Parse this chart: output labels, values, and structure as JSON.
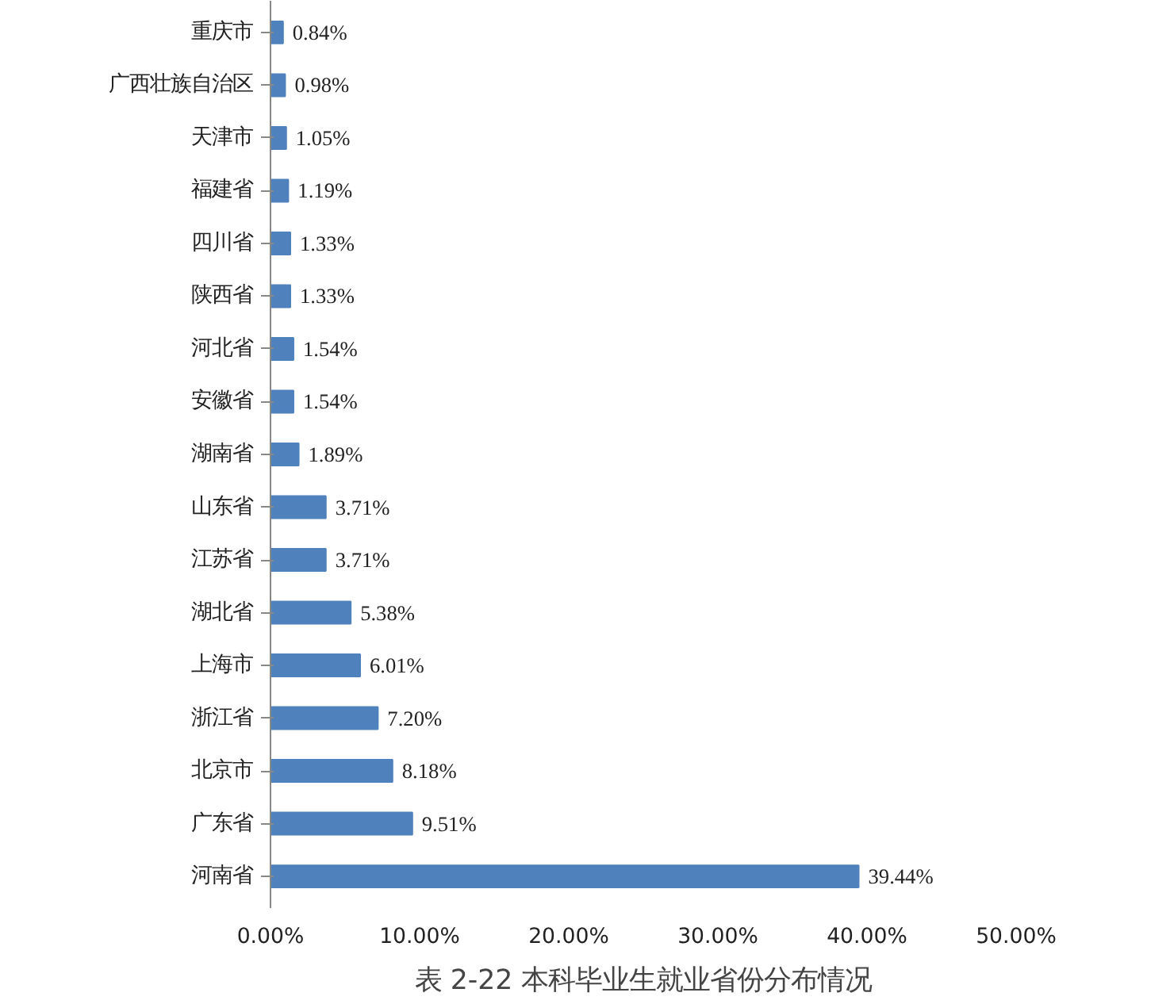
{
  "chart_data": {
    "type": "bar",
    "orientation": "horizontal",
    "title": "表 2-22 本科毕业生就业省份分布情况",
    "categories": [
      "重庆市",
      "广西壮族自治区",
      "天津市",
      "福建省",
      "四川省",
      "陕西省",
      "河北省",
      "安徽省",
      "湖南省",
      "山东省",
      "江苏省",
      "湖北省",
      "上海市",
      "浙江省",
      "北京市",
      "广东省",
      "河南省"
    ],
    "values": [
      0.84,
      0.98,
      1.05,
      1.19,
      1.33,
      1.33,
      1.54,
      1.54,
      1.89,
      3.71,
      3.71,
      5.38,
      6.01,
      7.2,
      8.18,
      9.51,
      39.44
    ],
    "value_labels": [
      "0.84%",
      "0.98%",
      "1.05%",
      "1.19%",
      "1.33%",
      "1.33%",
      "1.54%",
      "1.54%",
      "1.89%",
      "3.71%",
      "3.71%",
      "5.38%",
      "6.01%",
      "7.20%",
      "8.18%",
      "9.51%",
      "39.44%"
    ],
    "color": "#4f81bd",
    "xlim": [
      0,
      50
    ],
    "xticks": [
      {
        "value": 0,
        "label": "0.00%"
      },
      {
        "value": 10,
        "label": "10.00%"
      },
      {
        "value": 20,
        "label": "20.00%"
      },
      {
        "value": 30,
        "label": "30.00%"
      },
      {
        "value": 40,
        "label": "40.00%"
      },
      {
        "value": 50,
        "label": "50.00%"
      }
    ],
    "grid": false
  }
}
